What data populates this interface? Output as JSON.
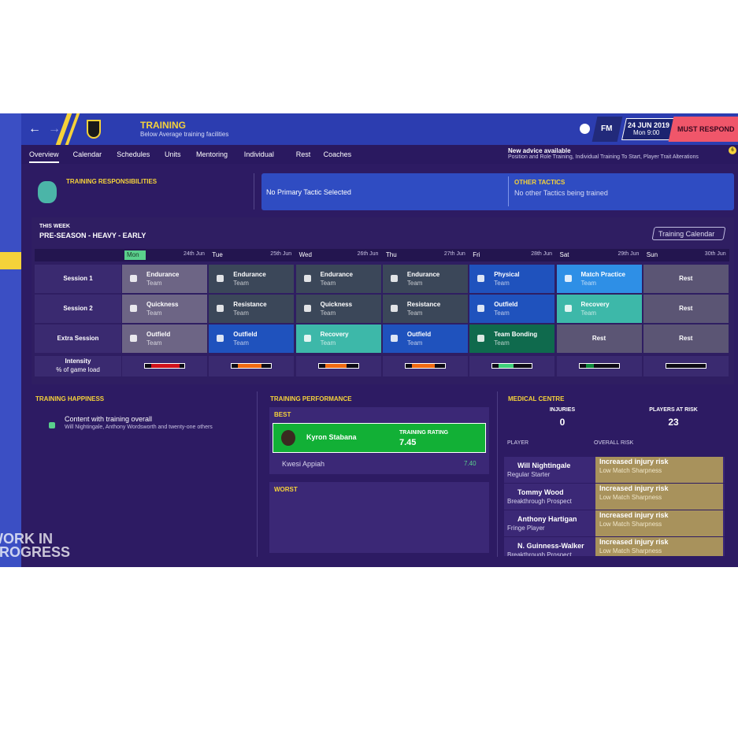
{
  "header": {
    "title": "TRAINING",
    "subtitle": "Below Average training facilities",
    "date": "24 JUN 2019",
    "time": "Mon 9:00",
    "logo": "FM",
    "must_respond": "MUST RESPOND",
    "advice_title": "New advice available",
    "advice_text": "Position and Role Training, Individual Training To Start, Player Trait Alterations",
    "badge": "6"
  },
  "tabs": [
    "Overview",
    "Calendar",
    "Schedules",
    "Units",
    "Mentoring",
    "Individual",
    "Rest",
    "Coaches"
  ],
  "responsibilities": {
    "title": "TRAINING RESPONSIBILITIES",
    "primary": "No Primary Tactic Selected",
    "other_title": "OTHER TACTICS",
    "other_text": "No other Tactics being trained"
  },
  "week": {
    "label": "THIS WEEK",
    "name": "PRE-SEASON - HEAVY - EARLY",
    "calendar_button": "Training Calendar",
    "days": [
      {
        "name": "Mon",
        "date": "24th Jun"
      },
      {
        "name": "Tue",
        "date": "25th Jun"
      },
      {
        "name": "Wed",
        "date": "26th Jun"
      },
      {
        "name": "Thu",
        "date": "27th Jun"
      },
      {
        "name": "Fri",
        "date": "28th Jun"
      },
      {
        "name": "Sat",
        "date": "29th Jun"
      },
      {
        "name": "Sun",
        "date": "30th Jun"
      }
    ],
    "rows": [
      {
        "label": "Session 1",
        "cells": [
          {
            "title": "Endurance",
            "sub": "Team",
            "color": "#6d6585"
          },
          {
            "title": "Endurance",
            "sub": "Team",
            "color": "#3b4759"
          },
          {
            "title": "Endurance",
            "sub": "Team",
            "color": "#3b4759"
          },
          {
            "title": "Endurance",
            "sub": "Team",
            "color": "#3b4759"
          },
          {
            "title": "Physical",
            "sub": "Team",
            "color": "#1f52bd"
          },
          {
            "title": "Match Practice",
            "sub": "Team",
            "color": "#2e8fe6"
          },
          {
            "title": "Rest",
            "color": "#5b5574"
          }
        ]
      },
      {
        "label": "Session 2",
        "cells": [
          {
            "title": "Quickness",
            "sub": "Team",
            "color": "#6d6585"
          },
          {
            "title": "Resistance",
            "sub": "Team",
            "color": "#3b4759"
          },
          {
            "title": "Quickness",
            "sub": "Team",
            "color": "#3b4759"
          },
          {
            "title": "Resistance",
            "sub": "Team",
            "color": "#3b4759"
          },
          {
            "title": "Outfield",
            "sub": "Team",
            "color": "#1f52bd"
          },
          {
            "title": "Recovery",
            "sub": "Team",
            "color": "#3db8a9"
          },
          {
            "title": "Rest",
            "color": "#5b5574"
          }
        ]
      },
      {
        "label": "Extra Session",
        "cells": [
          {
            "title": "Outfield",
            "sub": "Team",
            "color": "#6d6585"
          },
          {
            "title": "Outfield",
            "sub": "Team",
            "color": "#1f52bd"
          },
          {
            "title": "Recovery",
            "sub": "Team",
            "color": "#3db8a9"
          },
          {
            "title": "Outfield",
            "sub": "Team",
            "color": "#1f52bd"
          },
          {
            "title": "Team Bonding",
            "sub": "Team",
            "color": "#0f6a4d"
          },
          {
            "title": "Rest",
            "color": "#5b5574"
          },
          {
            "title": "Rest",
            "color": "#5b5574"
          }
        ]
      }
    ],
    "intensity_label": "Intensity",
    "intensity_sub": "% of game load",
    "intensity": [
      {
        "value": 85,
        "color": "#d0121b"
      },
      {
        "value": 70,
        "color": "#f06a12"
      },
      {
        "value": 65,
        "color": "#f06a12"
      },
      {
        "value": 70,
        "color": "#f06a12"
      },
      {
        "value": 45,
        "color": "#3fd07a"
      },
      {
        "value": 25,
        "color": "#0f8a3d"
      },
      {
        "value": 0,
        "color": "#0f8a3d"
      }
    ]
  },
  "happiness": {
    "title": "TRAINING HAPPINESS",
    "status": "Content with training overall",
    "detail": "Will Nightingale, Anthony Wordsworth and twenty-one others"
  },
  "performance": {
    "title": "TRAINING PERFORMANCE",
    "best": "BEST",
    "best_player": "Kyron Stabana",
    "rating_label": "TRAINING RATING",
    "rating": "7.45",
    "second_player": "Kwesi Appiah",
    "second_rating": "7.40",
    "worst": "WORST"
  },
  "medical": {
    "title": "MEDICAL CENTRE",
    "injuries_label": "INJURIES",
    "injuries": "0",
    "at_risk_label": "PLAYERS AT RISK",
    "at_risk": "23",
    "player_header": "PLAYER",
    "risk_header": "OVERALL RISK",
    "players": [
      {
        "name": "Will Nightingale",
        "role": "Regular Starter",
        "risk": "Increased injury risk",
        "reason": "Low Match Sharpness"
      },
      {
        "name": "Tommy Wood",
        "role": "Breakthrough Prospect",
        "risk": "Increased injury risk",
        "reason": "Low Match Sharpness"
      },
      {
        "name": "Anthony Hartigan",
        "role": "Fringe Player",
        "risk": "Increased injury risk",
        "reason": "Low Match Sharpness"
      },
      {
        "name": "N. Guinness-Walker",
        "role": "Breakthrough Prospect",
        "risk": "Increased injury risk",
        "reason": "Low Match Sharpness"
      }
    ]
  },
  "watermark": [
    "WORK IN",
    "PROGRESS"
  ]
}
